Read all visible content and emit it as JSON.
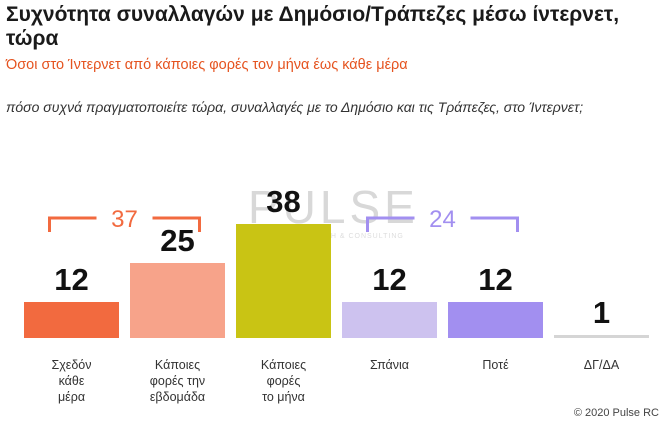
{
  "title": "Συχνότητα συναλλαγών με Δημόσιο/Τράπεζες μέσω ίντερνετ, τώρα",
  "subtitle": "Όσοι στο Ίντερνετ από κάποιες φορές τον μήνα έως κάθε μέρα",
  "question": "πόσο συχνά πραγματοποιείτε τώρα, συναλλαγές με το Δημόσιο και τις Τράπεζες, στο Ίντερνετ;",
  "watermark": "PULSE",
  "watermark_sub": "RESEARCH & CONSULTING",
  "copyright": "© 2020 Pulse RC",
  "chart_data": {
    "type": "bar",
    "categories": [
      [
        "Σχεδόν",
        "κάθε",
        "μέρα"
      ],
      [
        "Κάποιες",
        "φορές την",
        "εβδομάδα"
      ],
      [
        "Κάποιες",
        "φορές",
        "το μήνα"
      ],
      [
        "Σπάνια"
      ],
      [
        "Ποτέ"
      ],
      [
        "ΔΓ/ΔΑ"
      ]
    ],
    "values": [
      12,
      25,
      38,
      12,
      12,
      1
    ],
    "colors": [
      "#f26a3f",
      "#f7a38a",
      "#c9c414",
      "#cdc2ef",
      "#a28ff0",
      "#d5d5d5"
    ],
    "groups": [
      {
        "value": "37",
        "from": 0,
        "to": 1,
        "color": "#f26a3f"
      },
      {
        "value": "24",
        "from": 3,
        "to": 4,
        "color": "#a28ff0"
      }
    ],
    "ylim": [
      0,
      40
    ]
  }
}
